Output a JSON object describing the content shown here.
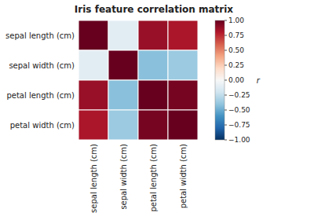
{
  "chart_data": {
    "type": "heatmap",
    "title": "Iris feature correlation matrix",
    "categories": [
      "sepal length (cm)",
      "sepal width (cm)",
      "petal length (cm)",
      "petal width (cm)"
    ],
    "values": [
      [
        1.0,
        -0.11,
        0.87,
        0.82
      ],
      [
        -0.11,
        1.0,
        -0.42,
        -0.37
      ],
      [
        0.87,
        -0.42,
        1.0,
        0.96
      ],
      [
        0.82,
        -0.37,
        0.96,
        1.0
      ]
    ],
    "colorscale": [
      "#053061",
      "#2166ac",
      "#4393c3",
      "#92c5de",
      "#d1e5f0",
      "#f7f7f7",
      "#fddbc7",
      "#f4a582",
      "#d6604d",
      "#b2182b",
      "#67001f"
    ],
    "color_range": [
      -1.0,
      1.0
    ],
    "colorbar_label": "r",
    "colorbar_ticks": [
      {
        "value": 1.0,
        "label": "1.00"
      },
      {
        "value": 0.75,
        "label": "0.75"
      },
      {
        "value": 0.5,
        "label": "0.50"
      },
      {
        "value": 0.25,
        "label": "0.25"
      },
      {
        "value": 0.0,
        "label": "0.00"
      },
      {
        "value": -0.25,
        "label": "−0.25"
      },
      {
        "value": -0.5,
        "label": "−0.50"
      },
      {
        "value": -0.75,
        "label": "−0.75"
      },
      {
        "value": -1.0,
        "label": "−1.00"
      }
    ]
  }
}
